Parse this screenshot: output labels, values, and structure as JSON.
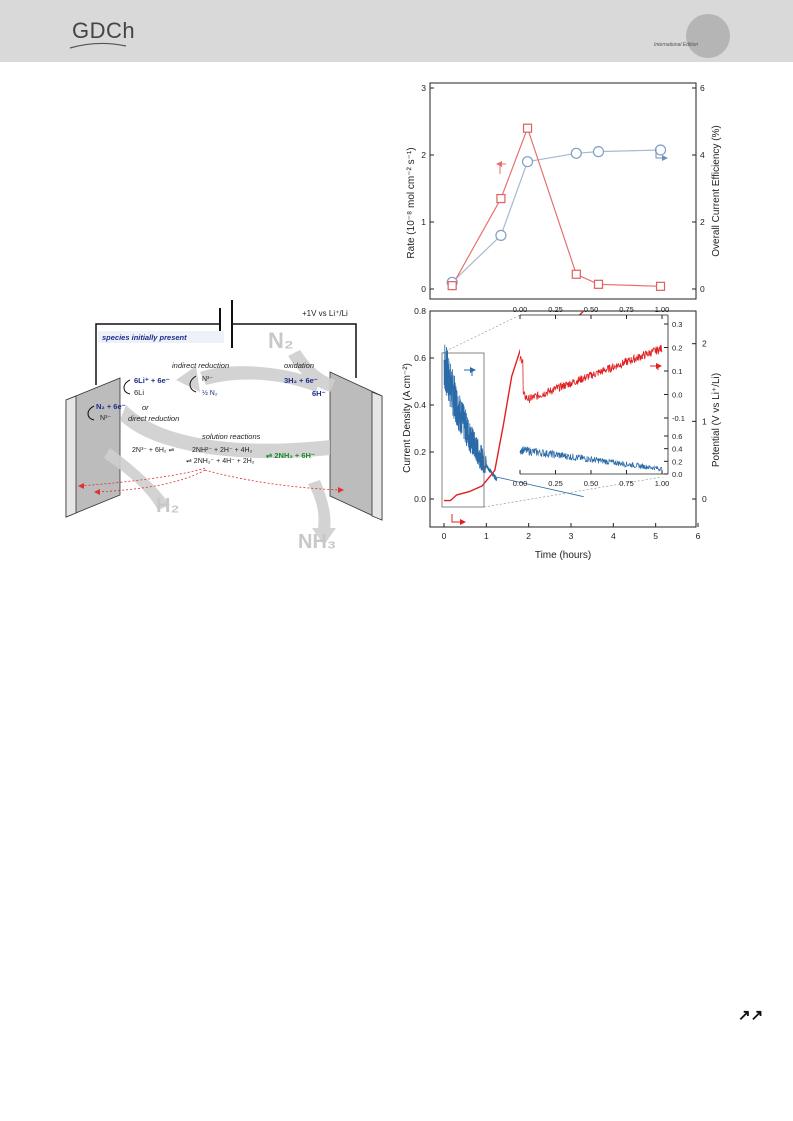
{
  "header": {
    "logo_text": "GDCh",
    "edition_text": "International Edition"
  },
  "scheme": {
    "voltage_label": "+1V vs Li⁺/Li",
    "species_label": "species initially present",
    "indirect_label": "indirect reduction",
    "oxidation_label": "oxidation",
    "or_label": "or",
    "direct_label": "direct reduction",
    "solution_label": "solution reactions",
    "li_reaction": "6Li⁺ + 6e⁻",
    "li_product": "6Li",
    "n3_top": "N³⁻",
    "half_n2": "½ N₂",
    "h2_reaction": "3H₂ + 6e⁻",
    "h_minus": "6H⁻",
    "n2_direct": "N₂ + 6e⁻",
    "n3_direct": "N³⁻",
    "sol_left": "2N³⁻ + 6H₂ ⇌",
    "sol_line1": "2NH²⁻ + 2H⁻ + 4H₂",
    "sol_line2": "⇌ 2NH₂⁻ + 4H⁻ + 2H₂",
    "sol_right": "⇌ 2NH₃ + 6H⁻",
    "gas_n2": "N₂",
    "gas_h2": "H₂",
    "gas_nh3": "NH₃"
  },
  "top_chart": {
    "ylabel_left": "Rate (10⁻⁸ mol cm⁻² s⁻¹)",
    "ylabel_right": "Overall Current Efficiency (%)",
    "left_ticks": [
      "0",
      "1",
      "2",
      "3"
    ],
    "right_ticks": [
      "0",
      "2",
      "4",
      "6"
    ]
  },
  "bottom_chart": {
    "ylabel_left": "Current Density (A cm⁻²)",
    "ylabel_right": "Potential (V vs Li⁺/Li)",
    "xlabel": "Time (hours)",
    "x_ticks": [
      "0",
      "1",
      "2",
      "3",
      "4",
      "5",
      "6"
    ],
    "left_ticks": [
      "0.0",
      "0.2",
      "0.4",
      "0.6",
      "0.8"
    ],
    "right_ticks": [
      "0",
      "1",
      "2"
    ],
    "inset_x_ticks": [
      "0.00",
      "0.25",
      "0.50",
      "0.75",
      "1.00"
    ],
    "inset_right_ticks_top": [
      "-0.1",
      "0.0",
      "0.1",
      "0.2",
      "0.3"
    ],
    "inset_right_ticks_bottom": [
      "0.0",
      "0.2",
      "0.4",
      "0.6"
    ]
  },
  "chart_data": [
    {
      "type": "scatter",
      "series": [
        {
          "name": "Rate",
          "color": "#e87070",
          "x": [
            0.5,
            1.6,
            2.2,
            3.3,
            3.8,
            5.2
          ],
          "y": [
            0.05,
            1.35,
            2.4,
            0.22,
            0.07,
            0.04
          ]
        },
        {
          "name": "Overall Current Efficiency",
          "color": "#8aa8c8",
          "x": [
            0.5,
            1.6,
            2.2,
            3.3,
            3.8,
            5.2
          ],
          "y": [
            0.2,
            1.6,
            3.8,
            4.05,
            4.1,
            4.15
          ]
        }
      ],
      "ylim_left": [
        0,
        3
      ],
      "ylim_right": [
        0,
        6
      ],
      "xlim": [
        0,
        6
      ]
    },
    {
      "type": "line",
      "xlabel": "Time (hours)",
      "xlim": [
        0,
        6
      ],
      "ylim_left": [
        0,
        0.8
      ],
      "ylim_right": [
        0,
        2.3
      ],
      "series": [
        {
          "name": "Current Density",
          "color": "#2a6aa8"
        },
        {
          "name": "Potential",
          "color": "#e02020"
        }
      ]
    }
  ],
  "footer": {
    "arrows": "↗↗"
  }
}
